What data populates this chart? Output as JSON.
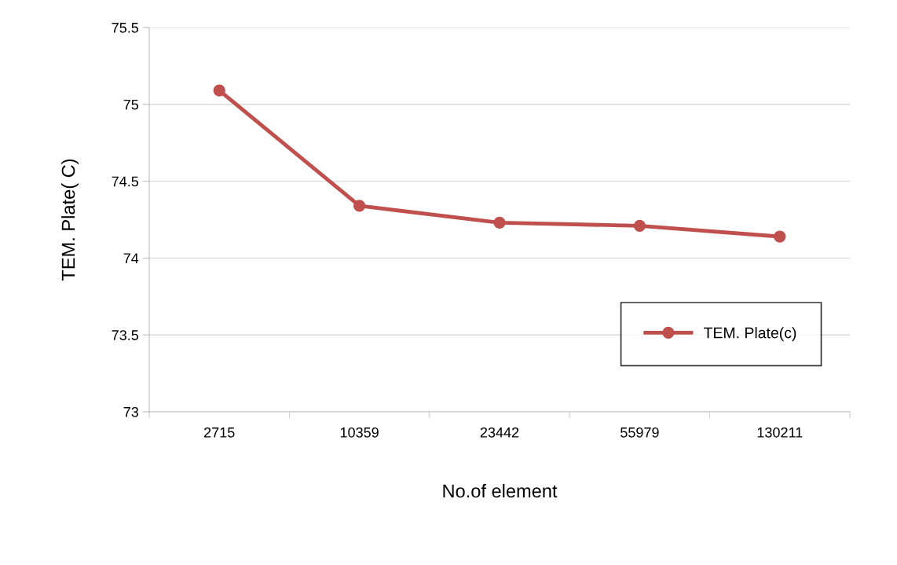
{
  "chart_data": {
    "type": "line",
    "xlabel": "No.of element",
    "ylabel": "TEM. Plate( C)",
    "categories": [
      "2715",
      "10359",
      "23442",
      "55979",
      "130211"
    ],
    "series": [
      {
        "name": "TEM. Plate(c)",
        "color": "#c0504d",
        "values": [
          75.09,
          74.34,
          74.23,
          74.21,
          74.14
        ]
      }
    ],
    "ylim": [
      73,
      75.5
    ],
    "yticks": [
      73,
      73.5,
      74,
      74.5,
      75,
      75.5
    ],
    "grid": "y",
    "legend": "bottom right",
    "marker": "circle",
    "line_style": "solid"
  }
}
